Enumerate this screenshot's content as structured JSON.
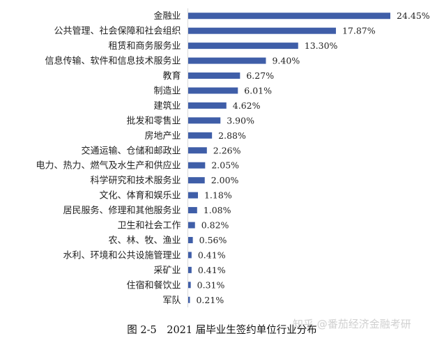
{
  "chart_data": {
    "type": "bar",
    "orientation": "horizontal",
    "categories": [
      "金融业",
      "公共管理、社会保障和社会组织",
      "租赁和商务服务业",
      "信息传输、软件和信息技术服务业",
      "教育",
      "制造业",
      "建筑业",
      "批发和零售业",
      "房地产业",
      "交通运输、仓储和邮政业",
      "电力、热力、燃气及水生产和供应业",
      "科学研究和技术服务业",
      "文化、体育和娱乐业",
      "居民服务、修理和其他服务业",
      "卫生和社会工作",
      "农、林、牧、渔业",
      "水利、环境和公共设施管理业",
      "采矿业",
      "住宿和餐饮业",
      "军队"
    ],
    "values": [
      24.45,
      17.87,
      13.3,
      9.4,
      6.27,
      6.01,
      4.62,
      3.9,
      2.88,
      2.26,
      2.05,
      2.0,
      1.18,
      1.08,
      0.82,
      0.56,
      0.41,
      0.41,
      0.31,
      0.21
    ],
    "value_labels": [
      "24.45%",
      "17.87%",
      "13.30%",
      "9.40%",
      "6.27%",
      "6.01%",
      "4.62%",
      "3.90%",
      "2.88%",
      "2.26%",
      "2.05%",
      "2.00%",
      "1.18%",
      "1.08%",
      "0.82%",
      "0.56%",
      "0.41%",
      "0.41%",
      "0.31%",
      "0.21%"
    ],
    "unit": "%",
    "grid": false,
    "legend": "none",
    "bar_color": "#3f5ea8"
  },
  "caption": "图 2-5　2021 届毕业生签约单位行业分布",
  "watermark": "知乎 @番茄经济金融考研"
}
